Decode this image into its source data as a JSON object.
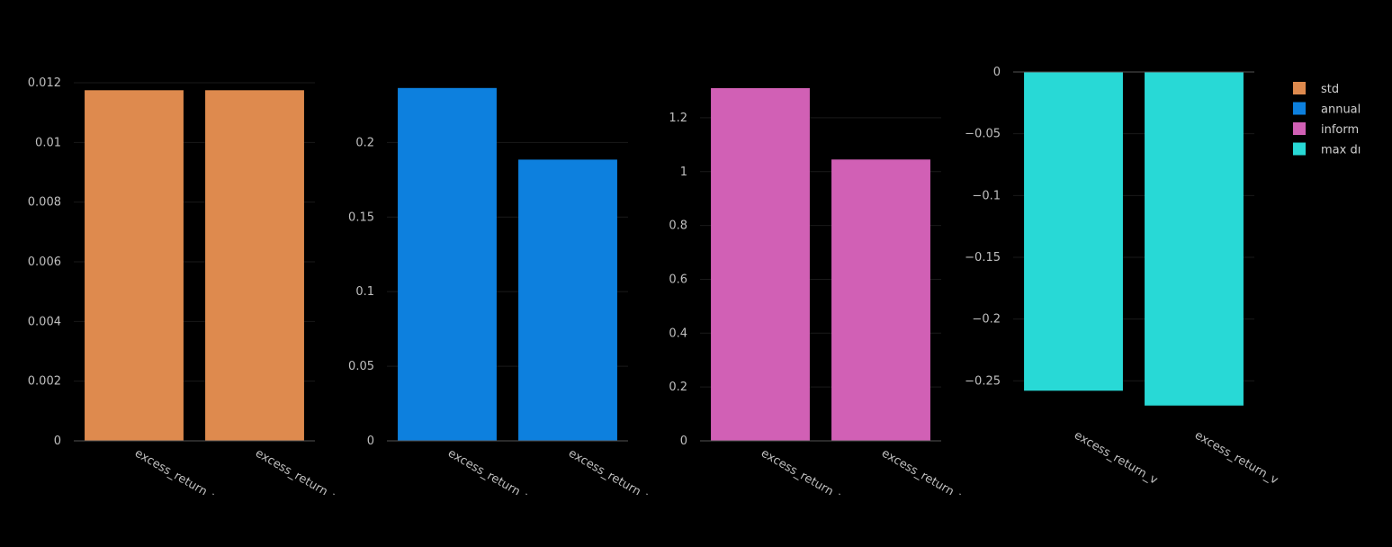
{
  "chart_data": [
    {
      "type": "bar",
      "categories": [
        "excess_return_v",
        "excess_return_v"
      ],
      "values": [
        0.01175,
        0.01175
      ],
      "ylim": [
        0,
        0.012
      ],
      "yticks": [
        0,
        0.002,
        0.004,
        0.006,
        0.008,
        0.01,
        0.012
      ],
      "ytick_labels": [
        "0",
        "0.002",
        "0.004",
        "0.006",
        "0.008",
        "0.01",
        "0.012"
      ],
      "series_name": "std",
      "color": "#DE8A4E",
      "grid": true
    },
    {
      "type": "bar",
      "categories": [
        "excess_return_v",
        "excess_return_v"
      ],
      "values": [
        0.2365,
        0.1885
      ],
      "ylim": [
        0,
        0.24
      ],
      "yticks": [
        0,
        0.05,
        0.1,
        0.15,
        0.2
      ],
      "ytick_labels": [
        "0",
        "0.05",
        "0.1",
        "0.15",
        "0.2"
      ],
      "series_name": "annual",
      "color": "#0D80DE",
      "grid": true
    },
    {
      "type": "bar",
      "categories": [
        "excess_return_v",
        "excess_return_v"
      ],
      "values": [
        1.31,
        1.045
      ],
      "ylim": [
        0,
        1.33
      ],
      "yticks": [
        0,
        0.2,
        0.4,
        0.6,
        0.8,
        1,
        1.2
      ],
      "ytick_labels": [
        "0",
        "0.2",
        "0.4",
        "0.6",
        "0.8",
        "1",
        "1.2"
      ],
      "series_name": "inform",
      "color": "#D160B5",
      "grid": true
    },
    {
      "type": "bar",
      "categories": [
        "excess_return_v",
        "excess_return_v"
      ],
      "values": [
        -0.258,
        -0.27
      ],
      "ylim": [
        -0.284,
        0
      ],
      "yticks": [
        0,
        -0.05,
        -0.1,
        -0.15,
        -0.2,
        -0.25
      ],
      "ytick_labels": [
        "0",
        "−0.05",
        "−0.1",
        "−0.15",
        "−0.2",
        "−0.25"
      ],
      "series_name": "max dı",
      "color": "#28D9D6",
      "grid": true
    }
  ],
  "legend": {
    "position": "top-right",
    "items": [
      {
        "label": "std",
        "color": "#DE8A4E"
      },
      {
        "label": "annual",
        "color": "#0D80DE"
      },
      {
        "label": "inform",
        "color": "#D160B5"
      },
      {
        "label": "max dı",
        "color": "#28D9D6"
      }
    ]
  },
  "colors": {
    "background": "#000000",
    "grid": "#1a1a1a",
    "axis": "#555555",
    "tick_text": "#bfbfbf"
  }
}
